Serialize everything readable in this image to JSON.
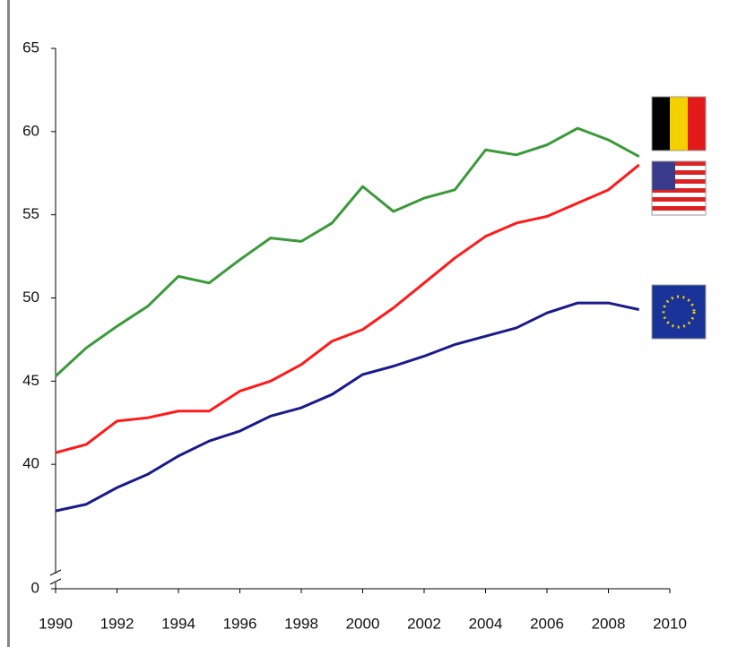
{
  "chart_data": {
    "type": "line",
    "x": [
      1990,
      1991,
      1992,
      1993,
      1994,
      1995,
      1996,
      1997,
      1998,
      1999,
      2000,
      2001,
      2002,
      2003,
      2004,
      2005,
      2006,
      2007,
      2008,
      2009
    ],
    "series": [
      {
        "color": "#3a9a3a",
        "values": [
          45.3,
          47.0,
          48.3,
          49.5,
          51.3,
          50.9,
          52.3,
          53.6,
          53.4,
          54.5,
          56.7,
          55.2,
          56.0,
          56.5,
          58.9,
          58.6,
          59.2,
          60.2,
          59.5,
          58.5
        ]
      },
      {
        "color": "#ff1a1a",
        "values": [
          40.7,
          41.2,
          42.6,
          42.8,
          43.2,
          43.2,
          44.4,
          45.0,
          46.0,
          47.4,
          48.1,
          49.4,
          50.9,
          52.4,
          53.7,
          54.5,
          54.9,
          55.7,
          56.5,
          58.0
        ]
      },
      {
        "color": "#1a1a8c",
        "values": [
          37.2,
          37.6,
          38.6,
          39.4,
          40.5,
          41.4,
          42.0,
          42.9,
          43.4,
          44.2,
          45.4,
          45.9,
          46.5,
          47.2,
          47.7,
          48.2,
          49.1,
          49.7,
          49.7,
          49.3
        ]
      }
    ],
    "xlim": [
      1990,
      2010
    ],
    "xticks": [
      1990,
      1992,
      1994,
      1996,
      1998,
      2000,
      2002,
      2004,
      2006,
      2008,
      2010
    ],
    "ylim": [
      0,
      65
    ],
    "axis_break": [
      0,
      35
    ],
    "yticks": [
      0,
      40,
      45,
      50,
      55,
      60,
      65
    ]
  }
}
